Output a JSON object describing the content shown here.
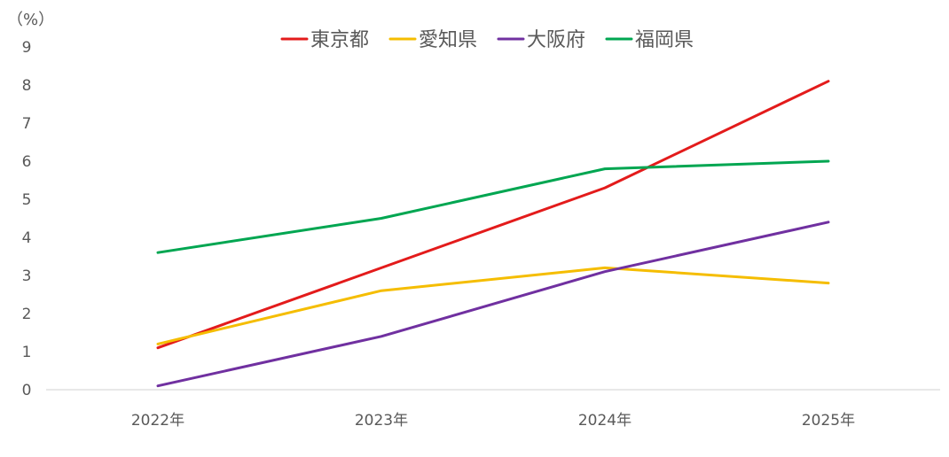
{
  "chart_data": {
    "type": "line",
    "ylabel": "（%）",
    "categories": [
      "2022年",
      "2023年",
      "2024年",
      "2025年"
    ],
    "yticks": [
      0,
      1,
      2,
      3,
      4,
      5,
      6,
      7,
      8,
      9
    ],
    "ylim": [
      0,
      9
    ],
    "grid": false,
    "legend": "top-center",
    "series": [
      {
        "name": "東京都",
        "color": "#e31b1b",
        "values": [
          1.1,
          3.2,
          5.3,
          8.1
        ]
      },
      {
        "name": "愛知県",
        "color": "#f5bd00",
        "values": [
          1.2,
          2.6,
          3.2,
          2.8
        ]
      },
      {
        "name": "大阪府",
        "color": "#7030a0",
        "values": [
          0.1,
          1.4,
          3.1,
          4.4
        ]
      },
      {
        "name": "福岡県",
        "color": "#00a651",
        "values": [
          3.6,
          4.5,
          5.8,
          6.0
        ]
      }
    ],
    "axis_color": "#d9d9d9"
  }
}
